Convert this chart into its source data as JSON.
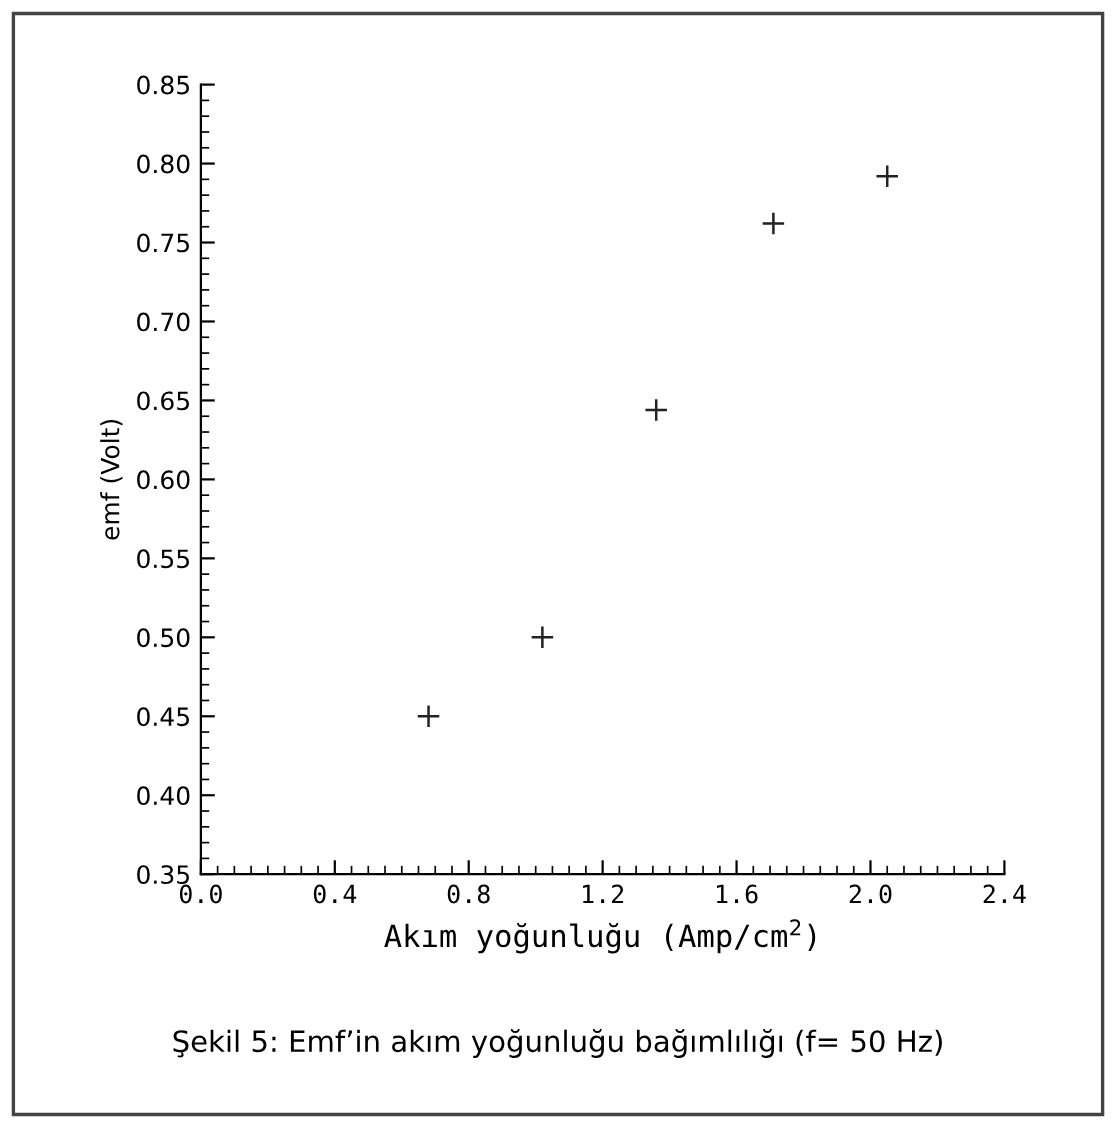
{
  "chart_data": {
    "type": "scatter",
    "xlabel": "Akım yoğunluğu (Amp/cm$^{2}$)",
    "ylabel": "emf (Volt)",
    "x": [
      0.68,
      1.02,
      1.36,
      1.71,
      2.05
    ],
    "values": [
      0.45,
      0.5,
      0.644,
      0.762,
      0.792
    ],
    "color": "#222222",
    "marker": "cross",
    "grid": false,
    "legend": false,
    "xlim": [
      0.0,
      2.4
    ],
    "xticks": [
      {
        "value": 0.0,
        "label": "0.0"
      },
      0.4,
      0.8,
      1.2,
      1.6,
      {
        "value": 2.0,
        "label": "2.0"
      },
      2.4
    ],
    "ylim": [
      0.35,
      0.85
    ],
    "yticks": [
      0.35,
      {
        "value": 0.4,
        "label": "0.40"
      },
      0.45,
      {
        "value": 0.5,
        "label": "0.50"
      },
      0.55,
      {
        "value": 0.6,
        "label": "0.60"
      },
      0.65,
      {
        "value": 0.7,
        "label": "0.70"
      },
      0.75,
      {
        "value": 0.8,
        "label": "0.80"
      },
      0.85
    ],
    "annotations": [
      "Şekil 5: Emf’in akım yoğunluğu bağımlılığı (f= 50 Hz)"
    ]
  }
}
